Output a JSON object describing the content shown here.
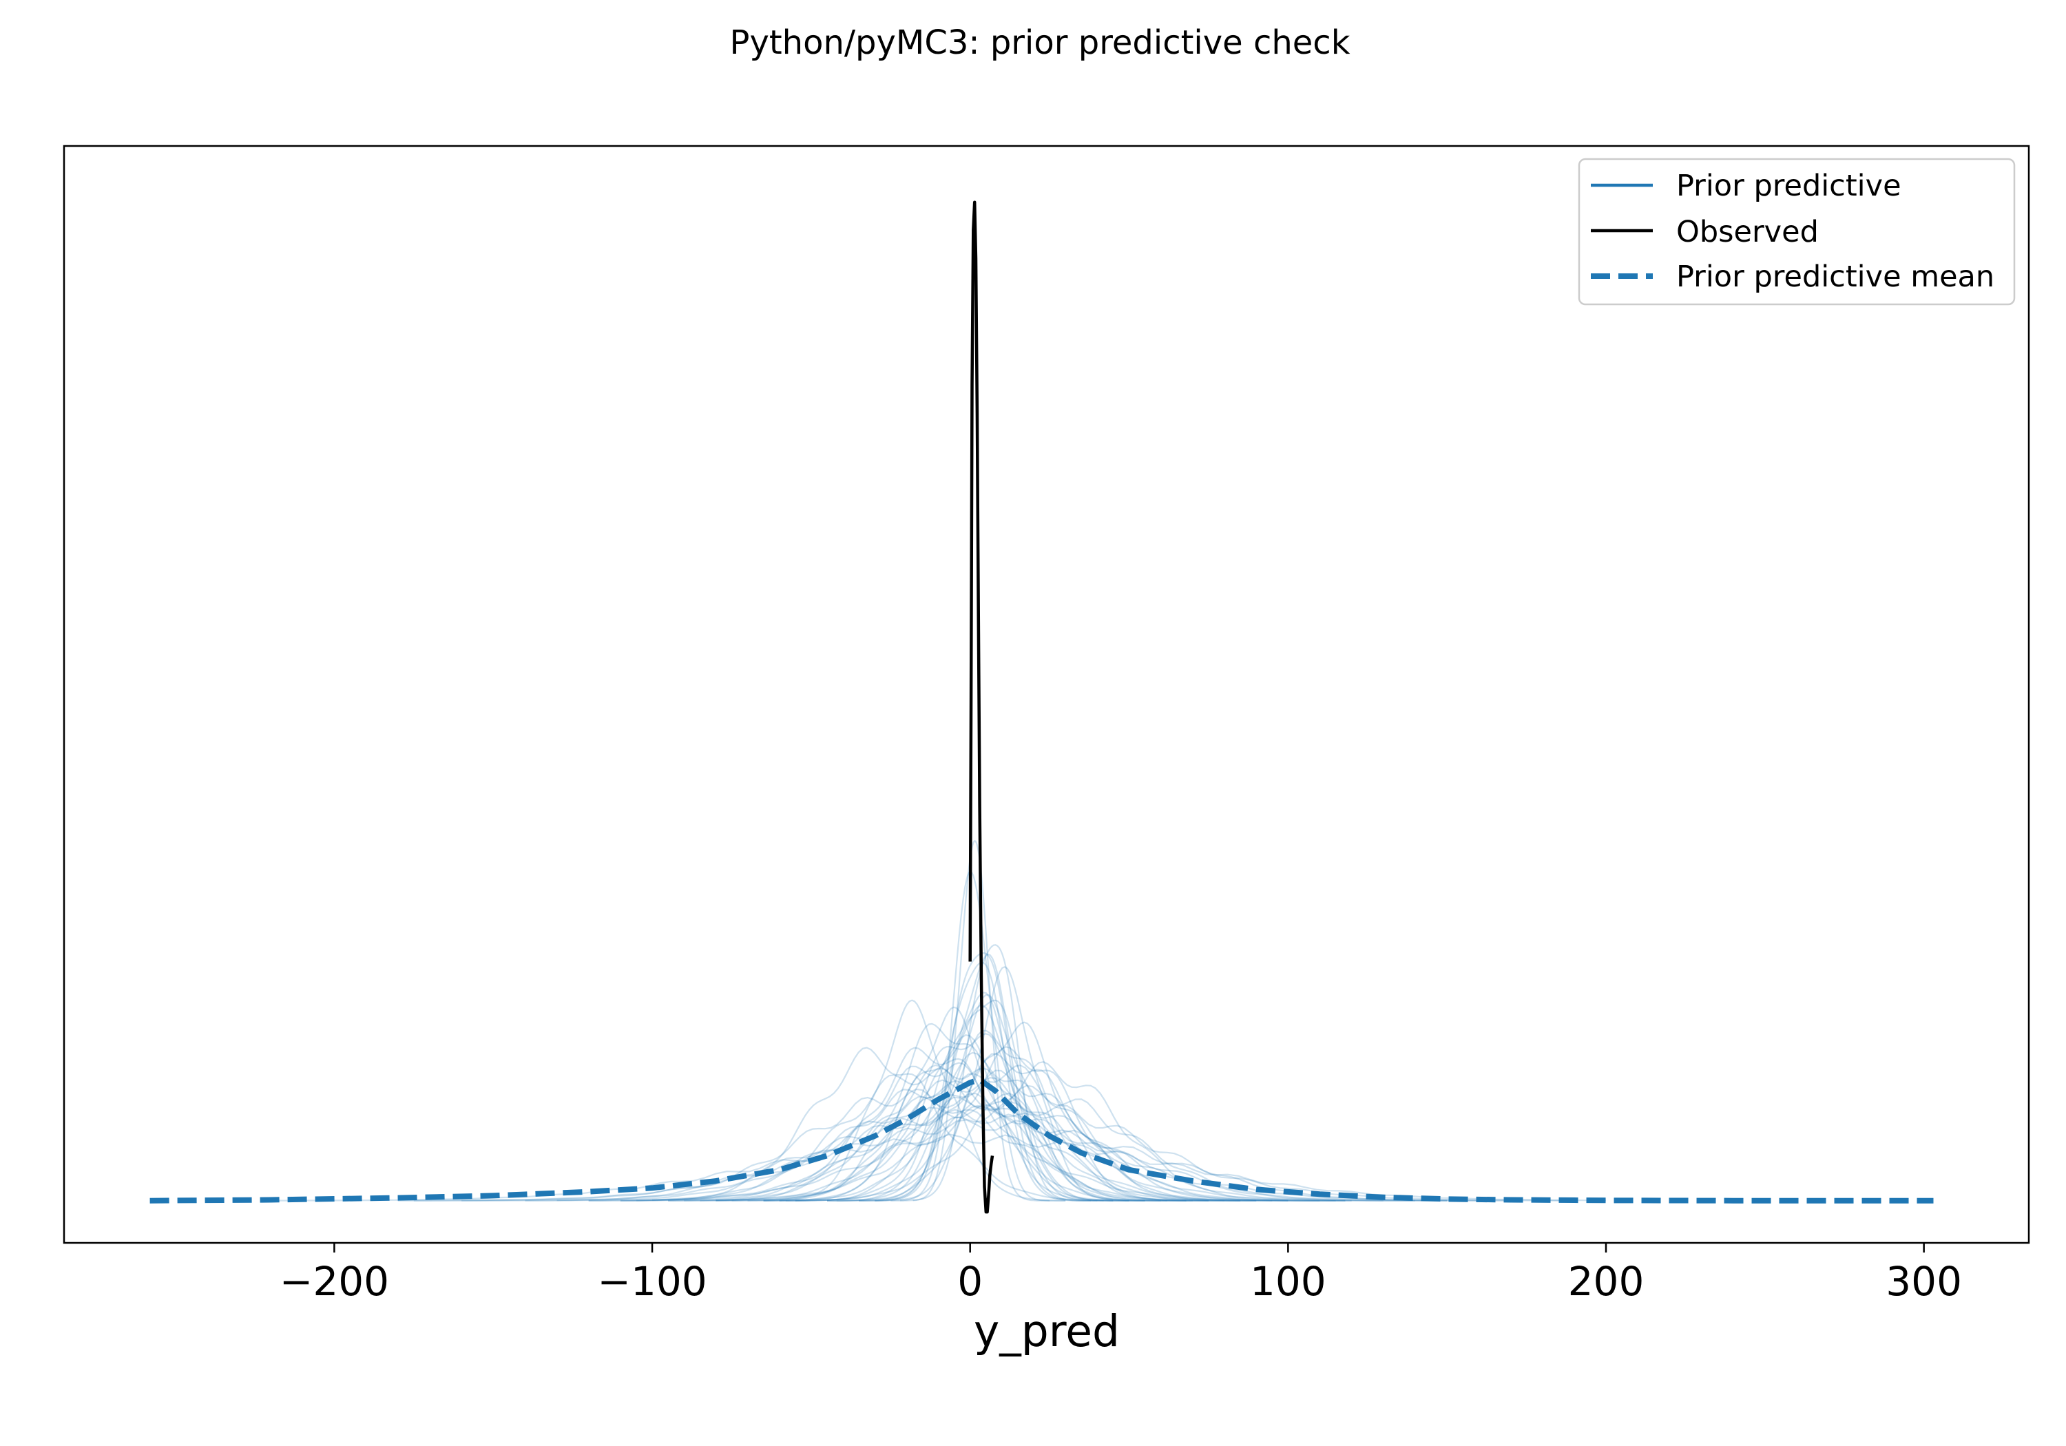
{
  "chart_data": {
    "type": "line",
    "title": "Python/pyMC3: prior predictive check",
    "xlabel": "y_pred",
    "ylabel": "",
    "xlim": [
      -285,
      333
    ],
    "ylim": [
      -0.0015,
      0.0375
    ],
    "x_ticks": [
      -200,
      -100,
      0,
      100,
      200,
      300
    ],
    "x_tick_labels": [
      "−200",
      "−100",
      "0",
      "100",
      "200",
      "300"
    ],
    "y_ticks_shown": false,
    "grid": false,
    "legend_position": "top-right",
    "legend": [
      {
        "label": "Prior predictive",
        "style": "solid",
        "color": "#1f77b4"
      },
      {
        "label": "Observed",
        "style": "solid",
        "color": "#000000"
      },
      {
        "label": "Prior predictive mean",
        "style": "dashed",
        "color": "#1f77b4"
      }
    ],
    "series": [
      {
        "name": "Observed",
        "color": "#000000",
        "style": "solid",
        "x": [
          0,
          0.3,
          0.6,
          1.0,
          1.4,
          1.8,
          2.2,
          2.6,
          3.0,
          3.5,
          4.0,
          4.5,
          5.0,
          5.4,
          5.8,
          6.2,
          6.6,
          7.0
        ],
        "y": [
          0.0085,
          0.018,
          0.029,
          0.0345,
          0.0355,
          0.0335,
          0.028,
          0.021,
          0.014,
          0.008,
          0.0035,
          0.0005,
          -0.0004,
          -0.0004,
          0.0002,
          0.0009,
          0.0013,
          0.0016
        ]
      },
      {
        "name": "Prior predictive mean",
        "color": "#1f77b4",
        "style": "dashed",
        "x": [
          -258,
          -220,
          -180,
          -150,
          -120,
          -100,
          -80,
          -60,
          -45,
          -30,
          -20,
          -10,
          0,
          3,
          8,
          15,
          25,
          35,
          50,
          70,
          90,
          110,
          130,
          150,
          170,
          200,
          240,
          270,
          303
        ],
        "y": [
          0,
          3e-05,
          0.0001,
          0.00018,
          0.00032,
          0.00045,
          0.0007,
          0.0011,
          0.0016,
          0.0023,
          0.0029,
          0.0036,
          0.0042,
          0.0043,
          0.0039,
          0.0031,
          0.0023,
          0.0017,
          0.0011,
          0.0007,
          0.0004,
          0.00023,
          0.00012,
          6e-05,
          3e-05,
          1e-05,
          0,
          0,
          0
        ]
      }
    ],
    "prior_samples": [
      {
        "mu": 2,
        "sd": 14,
        "amp": 0.0065,
        "x0": -58,
        "x1": 62
      },
      {
        "mu": -3,
        "sd": 18,
        "amp": 0.0055,
        "x0": -75,
        "x1": 80
      },
      {
        "mu": 5,
        "sd": 10,
        "amp": 0.0075,
        "x0": -42,
        "x1": 50
      },
      {
        "mu": 0,
        "sd": 28,
        "amp": 0.0042,
        "x0": -110,
        "x1": 115
      },
      {
        "mu": 8,
        "sd": 16,
        "amp": 0.0058,
        "x0": -60,
        "x1": 90
      },
      {
        "mu": -10,
        "sd": 22,
        "amp": 0.0048,
        "x0": -95,
        "x1": 85
      },
      {
        "mu": 3,
        "sd": 8,
        "amp": 0.0095,
        "x0": -30,
        "x1": 40
      },
      {
        "mu": 12,
        "sd": 20,
        "amp": 0.005,
        "x0": -70,
        "x1": 118
      },
      {
        "mu": -5,
        "sd": 35,
        "amp": 0.0036,
        "x0": -140,
        "x1": 130
      },
      {
        "mu": 1,
        "sd": 6,
        "amp": 0.0115,
        "x0": -22,
        "x1": 30
      },
      {
        "mu": -15,
        "sd": 25,
        "amp": 0.0045,
        "x0": -105,
        "x1": 75
      },
      {
        "mu": 6,
        "sd": 12,
        "amp": 0.0068,
        "x0": -45,
        "x1": 68
      },
      {
        "mu": 20,
        "sd": 30,
        "amp": 0.0038,
        "x0": -80,
        "x1": 150
      },
      {
        "mu": -2,
        "sd": 45,
        "amp": 0.003,
        "x0": -175,
        "x1": 160
      },
      {
        "mu": 4,
        "sd": 9,
        "amp": 0.0085,
        "x0": -35,
        "x1": 45
      },
      {
        "mu": -8,
        "sd": 15,
        "amp": 0.0062,
        "x0": -65,
        "x1": 55
      },
      {
        "mu": 10,
        "sd": 24,
        "amp": 0.0046,
        "x0": -85,
        "x1": 110
      },
      {
        "mu": 0,
        "sd": 60,
        "amp": 0.0022,
        "x0": -220,
        "x1": 200
      },
      {
        "mu": 2,
        "sd": 11,
        "amp": 0.0072,
        "x0": -45,
        "x1": 55
      },
      {
        "mu": -20,
        "sd": 32,
        "amp": 0.0037,
        "x0": -130,
        "x1": 100
      },
      {
        "mu": 7,
        "sd": 7,
        "amp": 0.0098,
        "x0": -25,
        "x1": 42
      },
      {
        "mu": 15,
        "sd": 18,
        "amp": 0.0052,
        "x0": -55,
        "x1": 95
      },
      {
        "mu": -1,
        "sd": 40,
        "amp": 0.0032,
        "x0": -160,
        "x1": 150
      },
      {
        "mu": 3,
        "sd": 21,
        "amp": 0.0049,
        "x0": -80,
        "x1": 90
      },
      {
        "mu": -6,
        "sd": 13,
        "amp": 0.0064,
        "x0": -55,
        "x1": 50
      },
      {
        "mu": 9,
        "sd": 26,
        "amp": 0.0043,
        "x0": -90,
        "x1": 120
      },
      {
        "mu": 1,
        "sd": 5,
        "amp": 0.0122,
        "x0": -18,
        "x1": 25
      },
      {
        "mu": -12,
        "sd": 19,
        "amp": 0.0053,
        "x0": -80,
        "x1": 70
      },
      {
        "mu": 18,
        "sd": 38,
        "amp": 0.0033,
        "x0": -100,
        "x1": 170
      },
      {
        "mu": 0,
        "sd": 16,
        "amp": 0.0059,
        "x0": -65,
        "x1": 68
      },
      {
        "mu": -30,
        "sd": 20,
        "amp": 0.0051,
        "x0": -110,
        "x1": 45
      },
      {
        "mu": 5,
        "sd": 50,
        "amp": 0.0027,
        "x0": -180,
        "x1": 190
      },
      {
        "mu": 11,
        "sd": 10,
        "amp": 0.0077,
        "x0": -35,
        "x1": 60
      },
      {
        "mu": -4,
        "sd": 23,
        "amp": 0.0047,
        "x0": -95,
        "x1": 85
      },
      {
        "mu": 14,
        "sd": 14,
        "amp": 0.0061,
        "x0": -45,
        "x1": 75
      },
      {
        "mu": -9,
        "sd": 29,
        "amp": 0.004,
        "x0": -120,
        "x1": 100
      },
      {
        "mu": 2,
        "sd": 8,
        "amp": 0.0089,
        "x0": -30,
        "x1": 38
      },
      {
        "mu": 25,
        "sd": 22,
        "amp": 0.0046,
        "x0": -60,
        "x1": 118
      },
      {
        "mu": -18,
        "sd": 12,
        "amp": 0.0066,
        "x0": -65,
        "x1": 30
      },
      {
        "mu": 6,
        "sd": 33,
        "amp": 0.0036,
        "x0": -120,
        "x1": 140
      }
    ]
  }
}
